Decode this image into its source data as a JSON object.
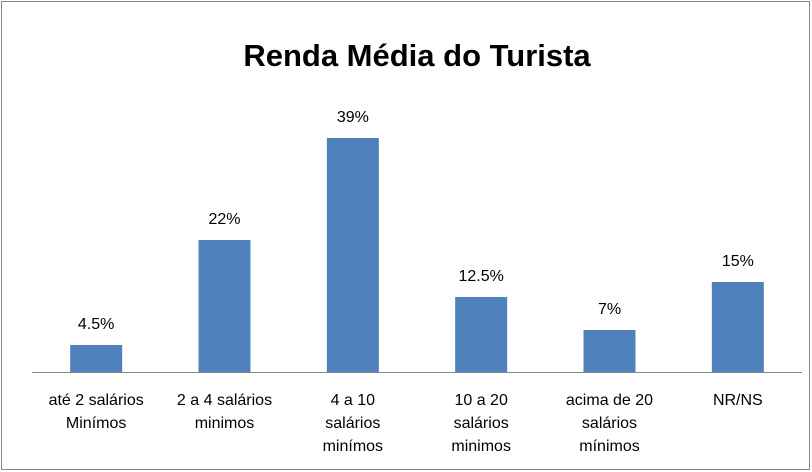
{
  "chart_data": {
    "type": "bar",
    "title": "Renda Média do Turista",
    "categories": [
      "até 2 salários\nMinímos",
      "2 a 4 salários\nminimos",
      "4 a 10\nsalários\nminímos",
      "10 a 20\nsalários\nminimos",
      "acima de 20\nsalários\nmínimos",
      "NR/NS"
    ],
    "values": [
      4.5,
      22,
      39,
      12.5,
      7,
      15
    ],
    "value_labels": [
      "4.5%",
      "22%",
      "39%",
      "12.5%",
      "7%",
      "15%"
    ],
    "color": "#4f81bd"
  }
}
